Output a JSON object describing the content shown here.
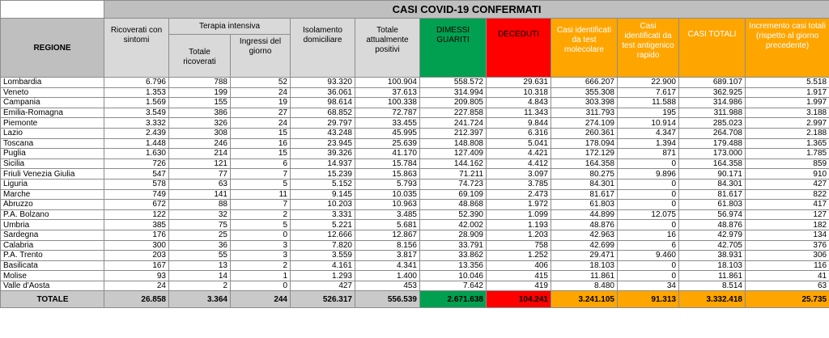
{
  "title": "CASI COVID-19 CONFERMATI",
  "headers": {
    "regione": "REGIONE",
    "ricoverati": "Ricoverati con sintomi",
    "terapia_group": "Terapia intensiva",
    "totale_ricoverati": "Totale ricoverati",
    "ingressi": "Ingressi del giorno",
    "isolamento": "Isolamento domiciliare",
    "positivi": "Totale attualmente positivi",
    "dimessi": "DIMESSI GUARITI",
    "deceduti": "DECEDUTI",
    "molecolare": "Casi identificati da test molecolare",
    "antigenico": "Casi identificati da test antigenico rapido",
    "casi_totali": "CASI TOTALI",
    "incremento": "Incremento casi totali (rispetto al giorno precedente)"
  },
  "rows": [
    [
      "Lombardia",
      "6.796",
      "788",
      "52",
      "93.320",
      "100.904",
      "558.572",
      "29.631",
      "666.207",
      "22.900",
      "689.107",
      "5.518"
    ],
    [
      "Veneto",
      "1.353",
      "199",
      "24",
      "36.061",
      "37.613",
      "314.994",
      "10.318",
      "355.308",
      "7.617",
      "362.925",
      "1.917"
    ],
    [
      "Campania",
      "1.569",
      "155",
      "19",
      "98.614",
      "100.338",
      "209.805",
      "4.843",
      "303.398",
      "11.588",
      "314.986",
      "1.997"
    ],
    [
      "Emilia-Romagna",
      "3.549",
      "386",
      "27",
      "68.852",
      "72.787",
      "227.858",
      "11.343",
      "311.793",
      "195",
      "311.988",
      "3.188"
    ],
    [
      "Piemonte",
      "3.332",
      "326",
      "24",
      "29.797",
      "33.455",
      "241.724",
      "9.844",
      "274.109",
      "10.914",
      "285.023",
      "2.997"
    ],
    [
      "Lazio",
      "2.439",
      "308",
      "15",
      "43.248",
      "45.995",
      "212.397",
      "6.316",
      "260.361",
      "4.347",
      "264.708",
      "2.188"
    ],
    [
      "Toscana",
      "1.448",
      "246",
      "16",
      "23.945",
      "25.639",
      "148.808",
      "5.041",
      "178.094",
      "1.394",
      "179.488",
      "1.365"
    ],
    [
      "Puglia",
      "1.630",
      "214",
      "15",
      "39.326",
      "41.170",
      "127.409",
      "4.421",
      "172.129",
      "871",
      "173.000",
      "1.785"
    ],
    [
      "Sicilia",
      "726",
      "121",
      "6",
      "14.937",
      "15.784",
      "144.162",
      "4.412",
      "164.358",
      "0",
      "164.358",
      "859"
    ],
    [
      "Friuli Venezia Giulia",
      "547",
      "77",
      "7",
      "15.239",
      "15.863",
      "71.211",
      "3.097",
      "80.275",
      "9.896",
      "90.171",
      "910"
    ],
    [
      "Liguria",
      "578",
      "63",
      "5",
      "5.152",
      "5.793",
      "74.723",
      "3.785",
      "84.301",
      "0",
      "84.301",
      "427"
    ],
    [
      "Marche",
      "749",
      "141",
      "11",
      "9.145",
      "10.035",
      "69.109",
      "2.473",
      "81.617",
      "0",
      "81.617",
      "822"
    ],
    [
      "Abruzzo",
      "672",
      "88",
      "7",
      "10.203",
      "10.963",
      "48.868",
      "1.972",
      "61.803",
      "0",
      "61.803",
      "417"
    ],
    [
      "P.A. Bolzano",
      "122",
      "32",
      "2",
      "3.331",
      "3.485",
      "52.390",
      "1.099",
      "44.899",
      "12.075",
      "56.974",
      "127"
    ],
    [
      "Umbria",
      "385",
      "75",
      "5",
      "5.221",
      "5.681",
      "42.002",
      "1.193",
      "48.876",
      "0",
      "48.876",
      "182"
    ],
    [
      "Sardegna",
      "176",
      "25",
      "0",
      "12.666",
      "12.867",
      "28.909",
      "1.203",
      "42.963",
      "16",
      "42.979",
      "134"
    ],
    [
      "Calabria",
      "300",
      "36",
      "3",
      "7.820",
      "8.156",
      "33.791",
      "758",
      "42.699",
      "6",
      "42.705",
      "376"
    ],
    [
      "P.A. Trento",
      "203",
      "55",
      "3",
      "3.559",
      "3.817",
      "33.862",
      "1.252",
      "29.471",
      "9.460",
      "38.931",
      "306"
    ],
    [
      "Basilicata",
      "167",
      "13",
      "2",
      "4.161",
      "4.341",
      "13.356",
      "406",
      "18.103",
      "0",
      "18.103",
      "116"
    ],
    [
      "Molise",
      "93",
      "14",
      "1",
      "1.293",
      "1.400",
      "10.046",
      "415",
      "11.861",
      "0",
      "11.861",
      "41"
    ],
    [
      "Valle d'Aosta",
      "24",
      "2",
      "0",
      "427",
      "453",
      "7.642",
      "419",
      "8.480",
      "34",
      "8.514",
      "63"
    ]
  ],
  "totals": [
    "TOTALE",
    "26.858",
    "3.364",
    "244",
    "526.317",
    "556.539",
    "2.671.638",
    "104.241",
    "3.241.105",
    "91.313",
    "3.332.418",
    "25.735"
  ],
  "colors": {
    "header_gray": "#bfbfbf",
    "subheader_gray": "#d9d9d9",
    "dimessi_green": "#00a050",
    "deceduti_red": "#ff0000",
    "casi_orange": "#ffa500"
  }
}
